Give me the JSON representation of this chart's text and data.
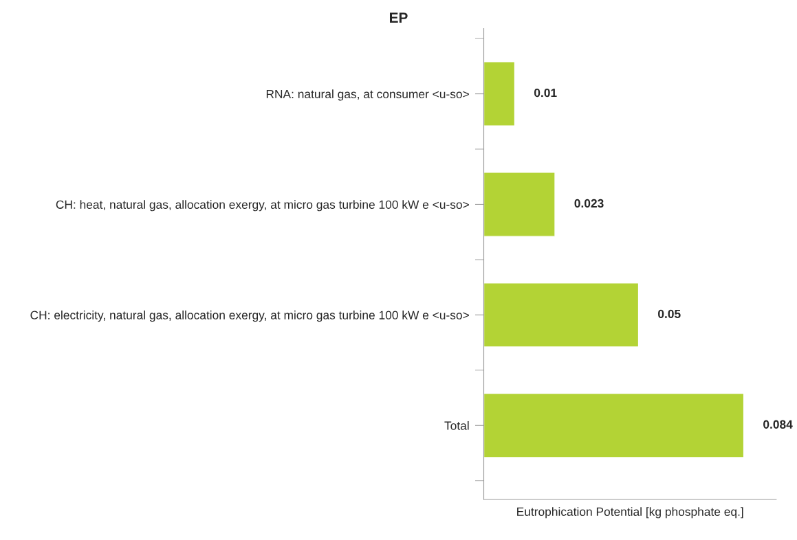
{
  "chart_data": {
    "type": "bar",
    "orientation": "horizontal",
    "title": "EP",
    "xlabel": "Eutrophication Potential [kg phosphate eq.]",
    "categories": [
      "RNA: natural gas, at consumer <u-so>",
      "CH: heat, natural gas, allocation exergy, at micro gas turbine 100 kW e <u-so>",
      "CH: electricity, natural gas, allocation exergy, at micro gas turbine 100 kW e <u-so>",
      "Total"
    ],
    "values": [
      0.01,
      0.023,
      0.05,
      0.084
    ],
    "color": "#b3d335",
    "data_labels": true,
    "xlim": [
      0,
      0.0945
    ]
  }
}
